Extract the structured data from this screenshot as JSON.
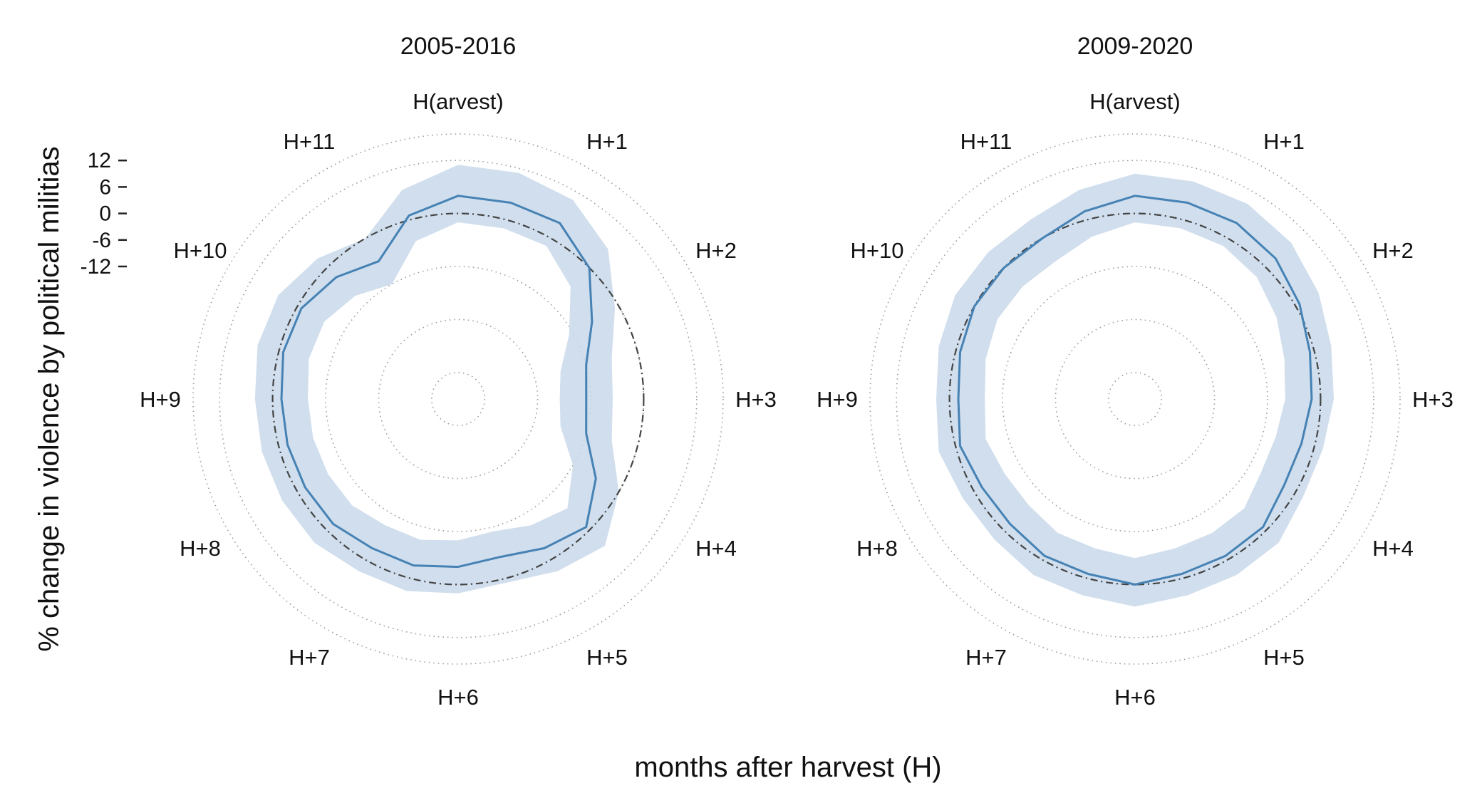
{
  "chart_data": {
    "type": "polar-line",
    "xlabel": "months after harvest (H)",
    "ylabel": "% change in violence by political militias",
    "categories": [
      "H(arvest)",
      "H+1",
      "H+2",
      "H+3",
      "H+4",
      "H+5",
      "H+6",
      "H+7",
      "H+8",
      "H+9",
      "H+10",
      "H+11"
    ],
    "rlim": [
      -42,
      18
    ],
    "ring_values": [
      -36,
      -24,
      -12,
      0,
      12,
      18
    ],
    "yticks": [
      12,
      6,
      0,
      -6,
      -12
    ],
    "reference_value": 0,
    "colors": {
      "line": "#4682b4",
      "band": "#c8d8ea",
      "reference": "#444444",
      "grid": "#9a9a9a"
    },
    "panels": [
      {
        "title": "2005-2016",
        "x": [
          0,
          0.5,
          1,
          1.5,
          2,
          2.5,
          3,
          3.5,
          4,
          4.5,
          5,
          5.5,
          6,
          6.5,
          7,
          7.5,
          8,
          8.5,
          9,
          9.5,
          10,
          10.5,
          11,
          11.5
        ],
        "estimate": [
          4,
          4,
          4,
          0,
          -7,
          -12,
          -13,
          -12,
          -6,
          -1,
          -3,
          -5,
          -4,
          -3,
          -3,
          -2,
          -2,
          -2,
          -2,
          -1,
          -1,
          -3,
          -6,
          1
        ],
        "lower": [
          -2,
          -2,
          -2,
          -6,
          -13,
          -18,
          -19,
          -18,
          -12,
          -7,
          -9,
          -11,
          -10,
          -9,
          -9,
          -8,
          -8,
          -8,
          -8,
          -7,
          -7,
          -9,
          -12,
          -5
        ],
        "upper": [
          11,
          11,
          10,
          6,
          -1,
          -6,
          -7,
          -6,
          0,
          5,
          3,
          1,
          2,
          3,
          3,
          4,
          4,
          4,
          4,
          5,
          5,
          3,
          0,
          7
        ]
      },
      {
        "title": "2009-2020",
        "x": [
          0,
          0.5,
          1,
          1.5,
          2,
          2.5,
          3,
          3.5,
          4,
          4.5,
          5,
          5.5,
          6,
          6.5,
          7,
          7.5,
          8,
          8.5,
          9,
          9.5,
          10,
          10.5,
          11,
          11.5
        ],
        "estimate": [
          4,
          4,
          4,
          3,
          1,
          -1,
          -2,
          -3,
          -3,
          -1,
          -1,
          -1,
          0,
          -1,
          -1,
          -2,
          -2,
          -1,
          -2,
          -1,
          0,
          0,
          0,
          2
        ],
        "lower": [
          -2,
          -2,
          -2,
          -3,
          -5,
          -7,
          -8,
          -9,
          -9,
          -7,
          -7,
          -7,
          -6,
          -7,
          -7,
          -8,
          -8,
          -7,
          -8,
          -7,
          -6,
          -6,
          -6,
          -4
        ],
        "upper": [
          9,
          9,
          9,
          8,
          6,
          4,
          3,
          2,
          2,
          4,
          4,
          4,
          5,
          4,
          4,
          3,
          3,
          4,
          3,
          4,
          5,
          5,
          5,
          7
        ]
      }
    ]
  }
}
